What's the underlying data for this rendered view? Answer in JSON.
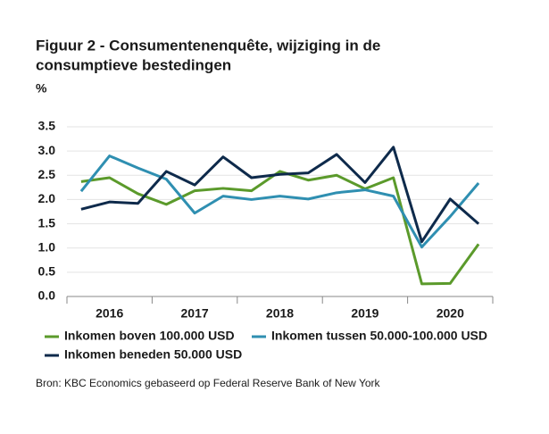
{
  "chart_data": {
    "type": "line",
    "title": [
      "Figuur 2 - Consumentenenquête, wijziging in de",
      "consumptieve bestedingen"
    ],
    "ylabel": "%",
    "categories": [
      null,
      "2016",
      null,
      null,
      "2017",
      null,
      null,
      "2018",
      null,
      null,
      "2019",
      null,
      null,
      "2020",
      null
    ],
    "series": [
      {
        "name": "Inkomen boven 100.000 USD",
        "color": "#5b9a2b",
        "values": [
          2.37,
          2.45,
          2.12,
          1.9,
          2.18,
          2.23,
          2.18,
          2.58,
          2.4,
          2.5,
          2.22,
          2.45,
          0.26,
          0.27,
          1.08
        ]
      },
      {
        "name": "Inkomen tussen 50.000-100.000 USD",
        "color": "#2f8fb1",
        "values": [
          2.17,
          2.9,
          2.65,
          2.42,
          1.72,
          2.07,
          2.0,
          2.07,
          2.01,
          2.14,
          2.2,
          2.07,
          1.02,
          1.65,
          2.34
        ]
      },
      {
        "name": "Inkomen beneden 50.000 USD",
        "color": "#0e2a4b",
        "values": [
          1.8,
          1.95,
          1.92,
          2.58,
          2.3,
          2.88,
          2.45,
          2.52,
          2.55,
          2.93,
          2.35,
          3.08,
          1.13,
          2.01,
          1.5
        ]
      }
    ],
    "ylim": [
      0,
      3.5
    ],
    "yticks": [
      {
        "value": 0,
        "label": "0.0"
      },
      0.5,
      {
        "value": 1,
        "label": "1.0"
      },
      1.5,
      {
        "value": 2,
        "label": "2.0"
      },
      2.5,
      {
        "value": 3,
        "label": "3.0"
      },
      3.5
    ],
    "grid": true,
    "source": "Bron: KBC Economics gebaseerd op Federal Reserve Bank of New York"
  }
}
